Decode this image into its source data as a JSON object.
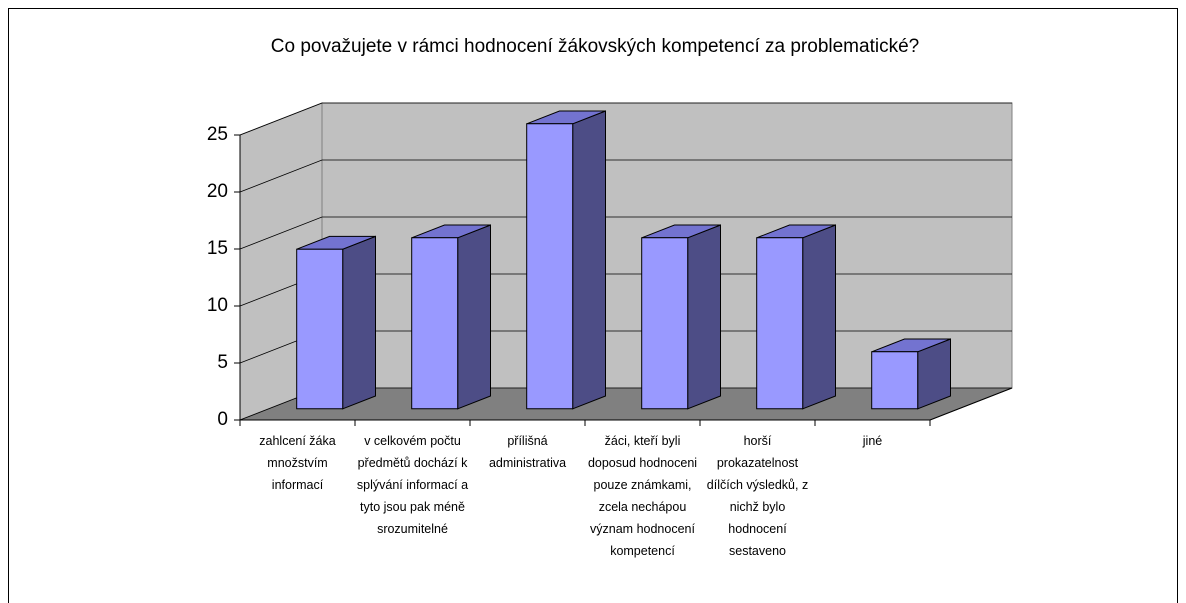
{
  "chart_data": {
    "type": "bar3d",
    "title": "Co považujete v rámci hodnocení žákovských kompetencí za problematické?",
    "categories": [
      "zahlcení žáka množstvím informací",
      "v celkovém počtu předmětů dochází k splývání informací a tyto jsou pak méně srozumitelné",
      "přílišná administrativa",
      "žáci, kteří byli doposud hodnoceni pouze známkami, zcela nechápou význam hodnocení kompetencí",
      "horší prokazatelnost dílčích výsledků, z nichž bylo hodnocení sestaveno",
      "jiné"
    ],
    "values": [
      14,
      15,
      25,
      15,
      15,
      5
    ],
    "color": "#9999ff",
    "ylim": [
      0,
      25
    ],
    "yticks": [
      0,
      5,
      10,
      15,
      20,
      25
    ],
    "grid": true
  }
}
